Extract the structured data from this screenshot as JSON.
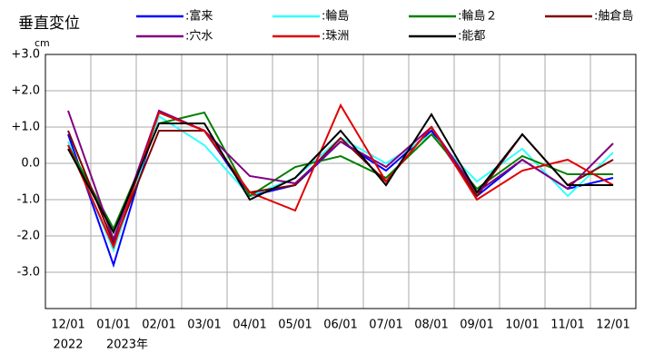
{
  "chart_data": {
    "type": "line",
    "title": "垂直変位",
    "y_unit": "cm",
    "categories": [
      "12/01",
      "01/01",
      "02/01",
      "03/01",
      "04/01",
      "05/01",
      "06/01",
      "07/01",
      "08/01",
      "09/01",
      "10/01",
      "11/01",
      "12/01"
    ],
    "year_labels": [
      "2022",
      "2023年"
    ],
    "ylim": [
      -4,
      3
    ],
    "yticks": [
      {
        "value": 3,
        "label": "+3.0"
      },
      {
        "value": 2,
        "label": "+2.0"
      },
      {
        "value": 1,
        "label": "+1.0"
      },
      {
        "value": 0,
        "label": "0.0"
      },
      {
        "value": -1,
        "label": "-1.0"
      },
      {
        "value": -2,
        "label": "-2.0"
      },
      {
        "value": -3,
        "label": "-3.0"
      }
    ],
    "grid": true,
    "series": [
      {
        "name": ":富来",
        "color": "#0000ff",
        "values": [
          0.8,
          -2.8,
          1.4,
          0.9,
          -0.9,
          -0.6,
          0.6,
          -0.2,
          0.9,
          -0.9,
          0.1,
          -0.7,
          -0.4
        ]
      },
      {
        "name": ":輪島",
        "color": "#33ffff",
        "values": [
          0.6,
          -2.4,
          1.3,
          0.5,
          -0.9,
          -0.4,
          0.7,
          0.0,
          0.8,
          -0.5,
          0.4,
          -0.9,
          0.3
        ]
      },
      {
        "name": ":輪島２",
        "color": "#008000",
        "values": [
          0.5,
          -1.8,
          1.1,
          1.4,
          -0.9,
          -0.1,
          0.2,
          -0.4,
          0.8,
          -0.7,
          0.2,
          -0.3,
          -0.3
        ]
      },
      {
        "name": ":舳倉島",
        "color": "#800000",
        "values": [
          0.9,
          -2.2,
          0.9,
          0.9,
          -0.8,
          -0.6,
          0.7,
          -0.5,
          1.0,
          -0.9,
          0.8,
          -0.6,
          0.1
        ]
      },
      {
        "name": ":穴水",
        "color": "#800080",
        "values": [
          1.45,
          -2.1,
          1.45,
          0.9,
          -0.35,
          -0.55,
          0.6,
          -0.1,
          1.0,
          -0.8,
          0.1,
          -0.7,
          0.55
        ]
      },
      {
        "name": ":珠洲",
        "color": "#e00000",
        "values": [
          0.5,
          -2.3,
          1.4,
          0.9,
          -0.8,
          -1.3,
          1.6,
          -0.5,
          1.0,
          -1.0,
          -0.2,
          0.1,
          -0.6
        ]
      },
      {
        "name": ":能都",
        "color": "#000000",
        "values": [
          0.4,
          -1.9,
          1.1,
          1.1,
          -1.0,
          -0.4,
          0.9,
          -0.6,
          1.35,
          -0.8,
          0.8,
          -0.6,
          -0.6
        ]
      }
    ]
  }
}
